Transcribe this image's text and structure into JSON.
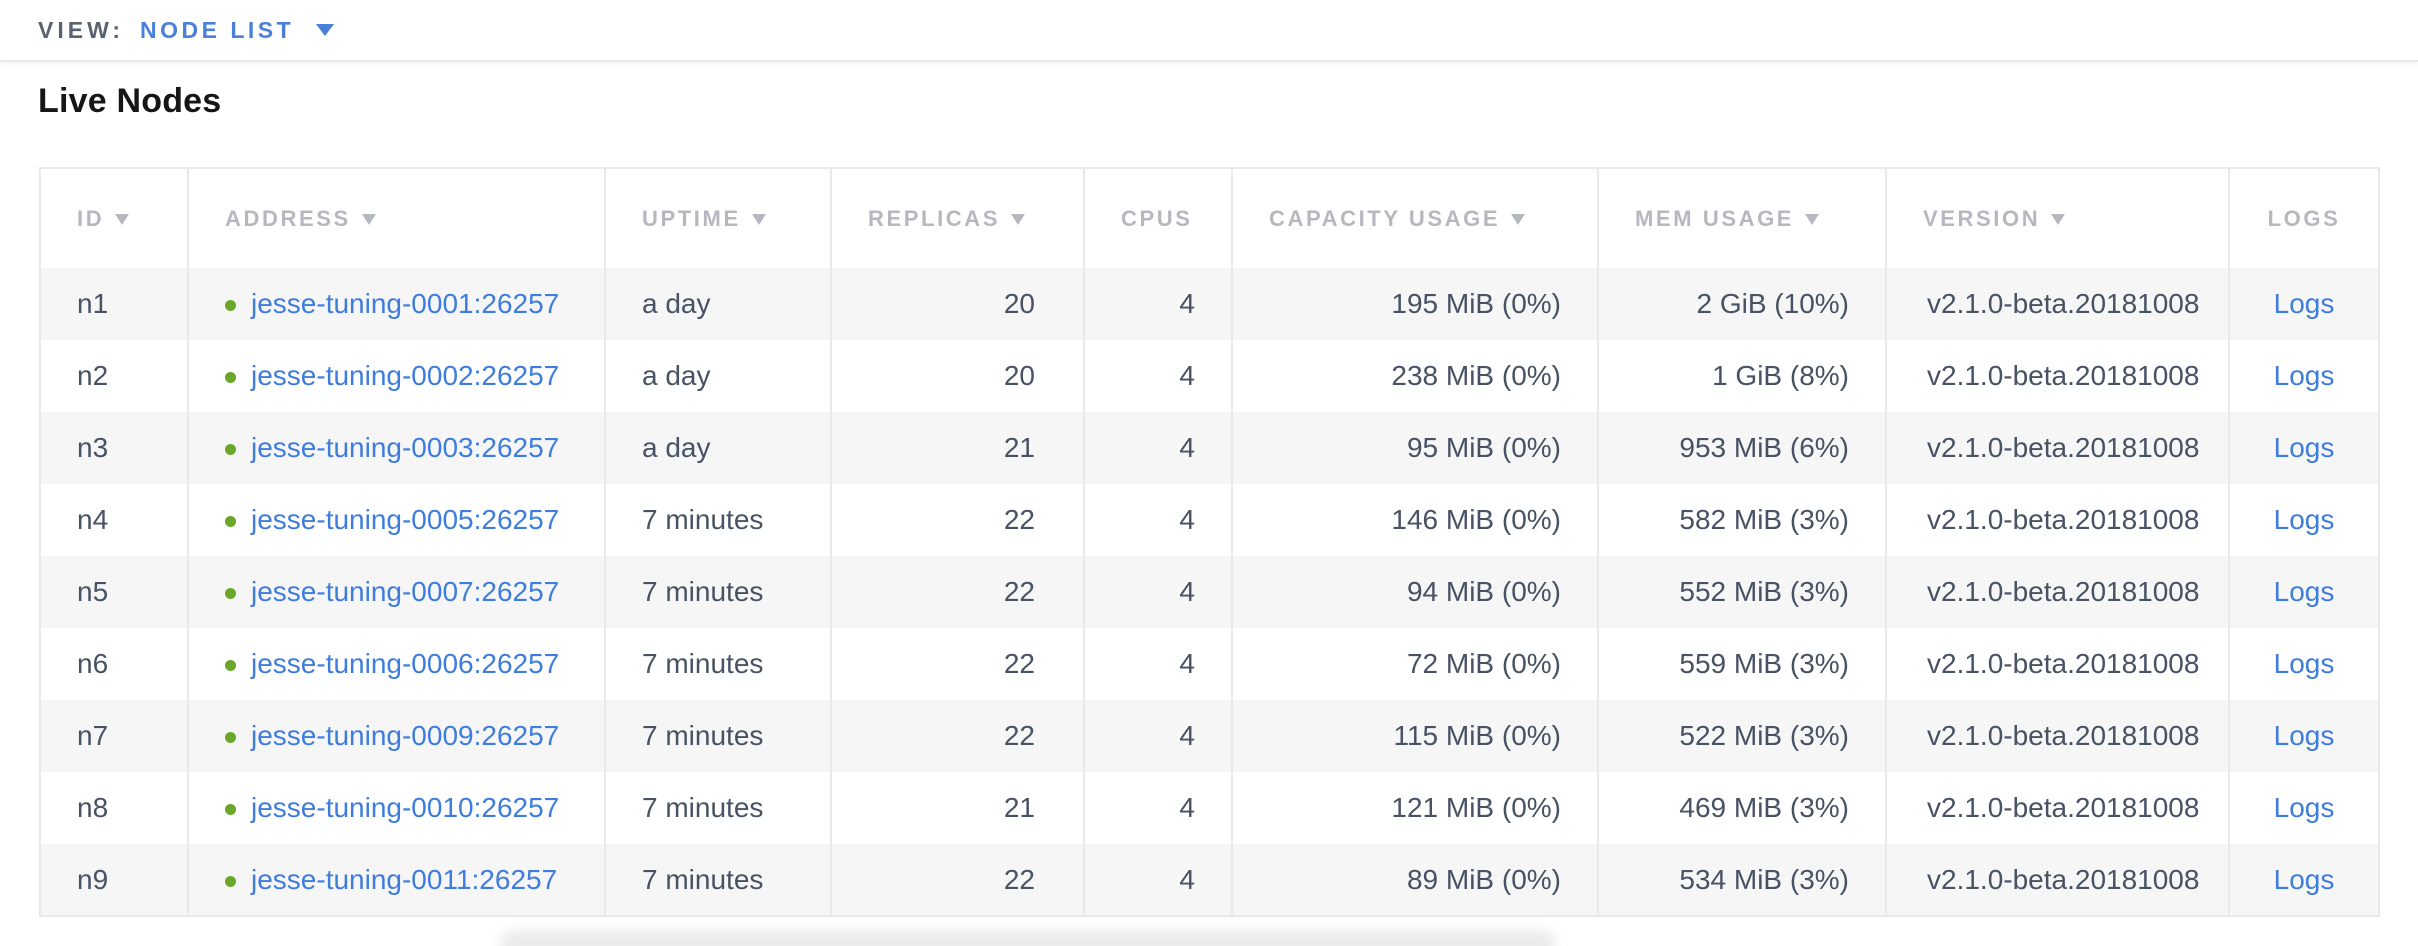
{
  "view_bar": {
    "label": "VIEW:",
    "selected_view": "NODE LIST"
  },
  "page_title": "Live Nodes",
  "table": {
    "columns": [
      {
        "key": "id",
        "label": "ID",
        "sortable": true
      },
      {
        "key": "address",
        "label": "ADDRESS",
        "sortable": true
      },
      {
        "key": "uptime",
        "label": "UPTIME",
        "sortable": true
      },
      {
        "key": "replicas",
        "label": "REPLICAS",
        "sortable": true
      },
      {
        "key": "cpus",
        "label": "CPUS",
        "sortable": false
      },
      {
        "key": "capacity",
        "label": "CAPACITY USAGE",
        "sortable": true
      },
      {
        "key": "mem",
        "label": "MEM USAGE",
        "sortable": true
      },
      {
        "key": "version",
        "label": "VERSION",
        "sortable": true
      },
      {
        "key": "logs",
        "label": "LOGS",
        "sortable": false
      }
    ],
    "rows": [
      {
        "id": "n1",
        "address": "jesse-tuning-0001:26257",
        "uptime": "a day",
        "replicas": "20",
        "cpus": "4",
        "capacity": "195 MiB (0%)",
        "mem": "2 GiB (10%)",
        "version": "v2.1.0-beta.20181008",
        "logs": "Logs"
      },
      {
        "id": "n2",
        "address": "jesse-tuning-0002:26257",
        "uptime": "a day",
        "replicas": "20",
        "cpus": "4",
        "capacity": "238 MiB (0%)",
        "mem": "1 GiB (8%)",
        "version": "v2.1.0-beta.20181008",
        "logs": "Logs"
      },
      {
        "id": "n3",
        "address": "jesse-tuning-0003:26257",
        "uptime": "a day",
        "replicas": "21",
        "cpus": "4",
        "capacity": "95 MiB (0%)",
        "mem": "953 MiB (6%)",
        "version": "v2.1.0-beta.20181008",
        "logs": "Logs"
      },
      {
        "id": "n4",
        "address": "jesse-tuning-0005:26257",
        "uptime": "7 minutes",
        "replicas": "22",
        "cpus": "4",
        "capacity": "146 MiB (0%)",
        "mem": "582 MiB (3%)",
        "version": "v2.1.0-beta.20181008",
        "logs": "Logs"
      },
      {
        "id": "n5",
        "address": "jesse-tuning-0007:26257",
        "uptime": "7 minutes",
        "replicas": "22",
        "cpus": "4",
        "capacity": "94 MiB (0%)",
        "mem": "552 MiB (3%)",
        "version": "v2.1.0-beta.20181008",
        "logs": "Logs"
      },
      {
        "id": "n6",
        "address": "jesse-tuning-0006:26257",
        "uptime": "7 minutes",
        "replicas": "22",
        "cpus": "4",
        "capacity": "72 MiB (0%)",
        "mem": "559 MiB (3%)",
        "version": "v2.1.0-beta.20181008",
        "logs": "Logs"
      },
      {
        "id": "n7",
        "address": "jesse-tuning-0009:26257",
        "uptime": "7 minutes",
        "replicas": "22",
        "cpus": "4",
        "capacity": "115 MiB (0%)",
        "mem": "522 MiB (3%)",
        "version": "v2.1.0-beta.20181008",
        "logs": "Logs"
      },
      {
        "id": "n8",
        "address": "jesse-tuning-0010:26257",
        "uptime": "7 minutes",
        "replicas": "21",
        "cpus": "4",
        "capacity": "121 MiB (0%)",
        "mem": "469 MiB (3%)",
        "version": "v2.1.0-beta.20181008",
        "logs": "Logs"
      },
      {
        "id": "n9",
        "address": "jesse-tuning-0011:26257",
        "uptime": "7 minutes",
        "replicas": "22",
        "cpus": "4",
        "capacity": "89 MiB (0%)",
        "mem": "534 MiB (3%)",
        "version": "v2.1.0-beta.20181008",
        "logs": "Logs"
      }
    ]
  },
  "colors": {
    "accent_blue": "#4a80da",
    "link_blue": "#3e7ddd",
    "status_green": "#6aa62c",
    "header_text": "#b5b8bf",
    "cell_text": "#475264"
  }
}
